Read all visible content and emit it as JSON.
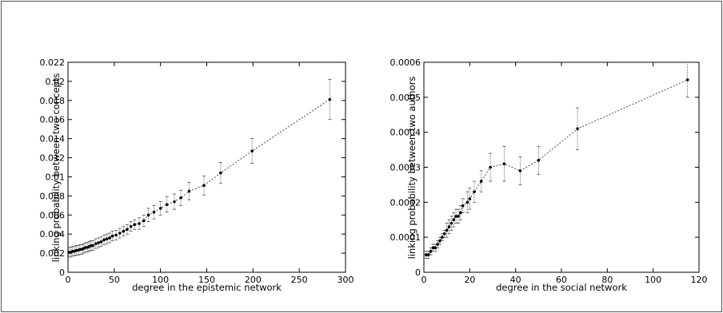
{
  "chart_data": [
    {
      "type": "scatter",
      "xlabel": "degree in the epistemic network",
      "ylabel": "linking probability between two concepts",
      "xlim": [
        0,
        300
      ],
      "ylim": [
        0,
        0.022
      ],
      "xticks": [
        "0",
        "50",
        "100",
        "150",
        "200",
        "250",
        "300"
      ],
      "yticks": [
        "0",
        "0.002",
        "0.004",
        "0.006",
        "0.008",
        "0.01",
        "0.012",
        "0.014",
        "0.016",
        "0.018",
        "0.02",
        "0.022"
      ],
      "grid": false,
      "series": [
        {
          "marker": "filled-circle-with-errorbars",
          "line": "dotted",
          "x": [
            1,
            3,
            5,
            7,
            9,
            11,
            13,
            15,
            17,
            19,
            21,
            23,
            25,
            27,
            30,
            33,
            36,
            39,
            42,
            45,
            48,
            52,
            56,
            60,
            64,
            68,
            72,
            77,
            82,
            87,
            93,
            100,
            107,
            115,
            122,
            131,
            147,
            165,
            199,
            283
          ],
          "y": [
            0.0021,
            0.0021,
            0.0022,
            0.0022,
            0.0023,
            0.0023,
            0.0024,
            0.0024,
            0.0025,
            0.0026,
            0.0026,
            0.0027,
            0.0028,
            0.0028,
            0.003,
            0.0031,
            0.0032,
            0.0034,
            0.0035,
            0.0036,
            0.0038,
            0.0039,
            0.0041,
            0.0043,
            0.0045,
            0.0048,
            0.005,
            0.0051,
            0.0054,
            0.006,
            0.0063,
            0.0067,
            0.0071,
            0.0074,
            0.0078,
            0.0085,
            0.0091,
            0.0104,
            0.0127,
            0.0181
          ],
          "err": [
            0.0005,
            0.0005,
            0.0005,
            0.0005,
            0.0005,
            0.0005,
            0.0005,
            0.0005,
            0.0005,
            0.0005,
            0.0005,
            0.0005,
            0.0005,
            0.0005,
            0.0005,
            0.0005,
            0.0005,
            0.0005,
            0.0005,
            0.0005,
            0.0005,
            0.0005,
            0.0005,
            0.0005,
            0.0005,
            0.0005,
            0.0005,
            0.0006,
            0.0006,
            0.0007,
            0.0007,
            0.0007,
            0.0008,
            0.0008,
            0.0008,
            0.0009,
            0.001,
            0.0011,
            0.0013,
            0.0021
          ]
        }
      ]
    },
    {
      "type": "scatter",
      "xlabel": "degree in the social network",
      "ylabel": "linking probability between two authors",
      "xlim": [
        0,
        120
      ],
      "ylim": [
        0,
        0.0006
      ],
      "xticks": [
        "0",
        "20",
        "40",
        "60",
        "80",
        "100",
        "120"
      ],
      "yticks": [
        "0",
        "0.0001",
        "0.0002",
        "0.0003",
        "0.0004",
        "0.0005",
        "0.0006"
      ],
      "grid": false,
      "series": [
        {
          "marker": "filled-circle-with-errorbars",
          "line": "dotted",
          "x": [
            1,
            2,
            3,
            4,
            5,
            6,
            7,
            8,
            9,
            10,
            11,
            12,
            13,
            14,
            15,
            16,
            17,
            19,
            20,
            22,
            25,
            29,
            35,
            42,
            50,
            67,
            115
          ],
          "y": [
            5e-05,
            5e-05,
            6e-05,
            7e-05,
            7e-05,
            8e-05,
            9e-05,
            0.0001,
            0.00011,
            0.00012,
            0.00013,
            0.00014,
            0.00015,
            0.00016,
            0.00016,
            0.00017,
            0.00019,
            0.0002,
            0.00021,
            0.00023,
            0.00026,
            0.0003,
            0.00031,
            0.00029,
            0.00032,
            0.00041,
            0.00055
          ],
          "err": [
            1e-05,
            1e-05,
            1e-05,
            1e-05,
            1e-05,
            1e-05,
            1e-05,
            1e-05,
            1e-05,
            2e-05,
            2e-05,
            2e-05,
            2e-05,
            2e-05,
            2e-05,
            2e-05,
            2e-05,
            3e-05,
            3e-05,
            3e-05,
            3e-05,
            4e-05,
            5e-05,
            4e-05,
            4e-05,
            6e-05,
            5e-05
          ]
        }
      ]
    }
  ]
}
